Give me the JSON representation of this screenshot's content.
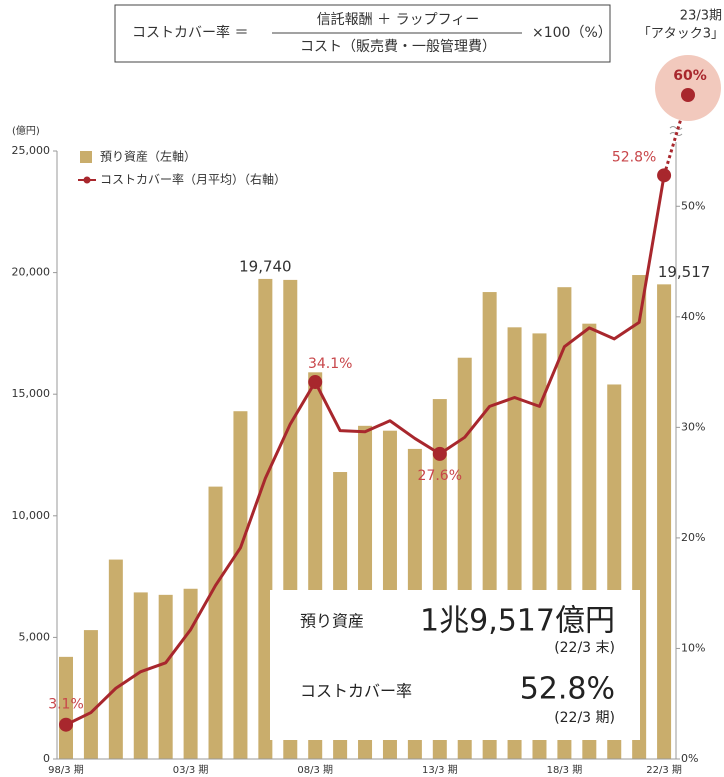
{
  "chart_data": {
    "type": "bar_line",
    "formula": {
      "lhs": "コストカバー率 ＝",
      "numerator": "信託報酬 ＋ ラップフィー",
      "denominator": "コスト（販売費・一般管理費）",
      "multiplier": "×100（%）"
    },
    "y_unit": "(億円)",
    "categories": [
      "98/3 期",
      null,
      null,
      null,
      null,
      "03/3 期",
      null,
      null,
      null,
      null,
      "08/3 期",
      null,
      null,
      null,
      null,
      "13/3 期",
      null,
      null,
      null,
      null,
      "18/3 期",
      null,
      null,
      null,
      "22/3 期"
    ],
    "series": [
      {
        "name": "預り資産（左軸）",
        "type": "bar",
        "color": "#c9ad6c",
        "values": [
          4200,
          5300,
          8200,
          6850,
          6750,
          7000,
          11200,
          14300,
          19740,
          19700,
          15900,
          11800,
          13700,
          13500,
          12750,
          14800,
          16500,
          19200,
          17750,
          17500,
          19400,
          17900,
          15400,
          19900,
          19517
        ],
        "value_labels": [
          null,
          null,
          null,
          null,
          null,
          null,
          null,
          null,
          "19,740",
          null,
          null,
          null,
          null,
          null,
          null,
          null,
          null,
          null,
          null,
          null,
          null,
          null,
          null,
          null,
          "19,517"
        ]
      },
      {
        "name": "コストカバー率（月平均）（右軸）",
        "type": "line",
        "axis": "y2",
        "color": "#a8272d",
        "values": [
          3.1,
          4.2,
          6.4,
          7.9,
          8.7,
          11.7,
          15.7,
          19.1,
          25.4,
          30.3,
          34.1,
          29.7,
          29.6,
          30.6,
          29.0,
          27.6,
          29.1,
          31.9,
          32.7,
          31.9,
          37.3,
          39.0,
          38.0,
          39.5,
          52.8
        ],
        "value_labels": [
          "3.1%",
          null,
          null,
          null,
          null,
          null,
          null,
          null,
          null,
          null,
          "34.1%",
          null,
          null,
          null,
          null,
          "27.6%",
          null,
          null,
          null,
          null,
          null,
          null,
          null,
          null,
          "52.8%"
        ]
      }
    ],
    "target": {
      "label": "23/3期",
      "sublabel": "「アタック3」",
      "value": 60,
      "value_label": "60%"
    },
    "ylim": [
      0,
      25000
    ],
    "yticks": [
      0,
      {
        "value": 5000,
        "label": "5,000"
      },
      {
        "value": 10000,
        "label": "10,000"
      },
      {
        "value": 15000,
        "label": "15,000"
      },
      {
        "value": 20000,
        "label": "20,000"
      },
      {
        "value": 25000,
        "label": "25,000"
      }
    ],
    "y2lim": [
      0,
      55
    ],
    "y2ticks": [
      {
        "value": 0,
        "label": "0%"
      },
      {
        "value": 10,
        "label": "10%"
      },
      {
        "value": 20,
        "label": "20%"
      },
      {
        "value": 30,
        "label": "30%"
      },
      {
        "value": 40,
        "label": "40%"
      },
      {
        "value": 50,
        "label": "50%"
      }
    ],
    "summary": {
      "assets_label": "預り資産",
      "assets_value": "1兆9,517億円",
      "assets_note": "(22/3 末)",
      "ratio_label": "コストカバー率",
      "ratio_value": "52.8%",
      "ratio_note": "(22/3 期)"
    }
  }
}
